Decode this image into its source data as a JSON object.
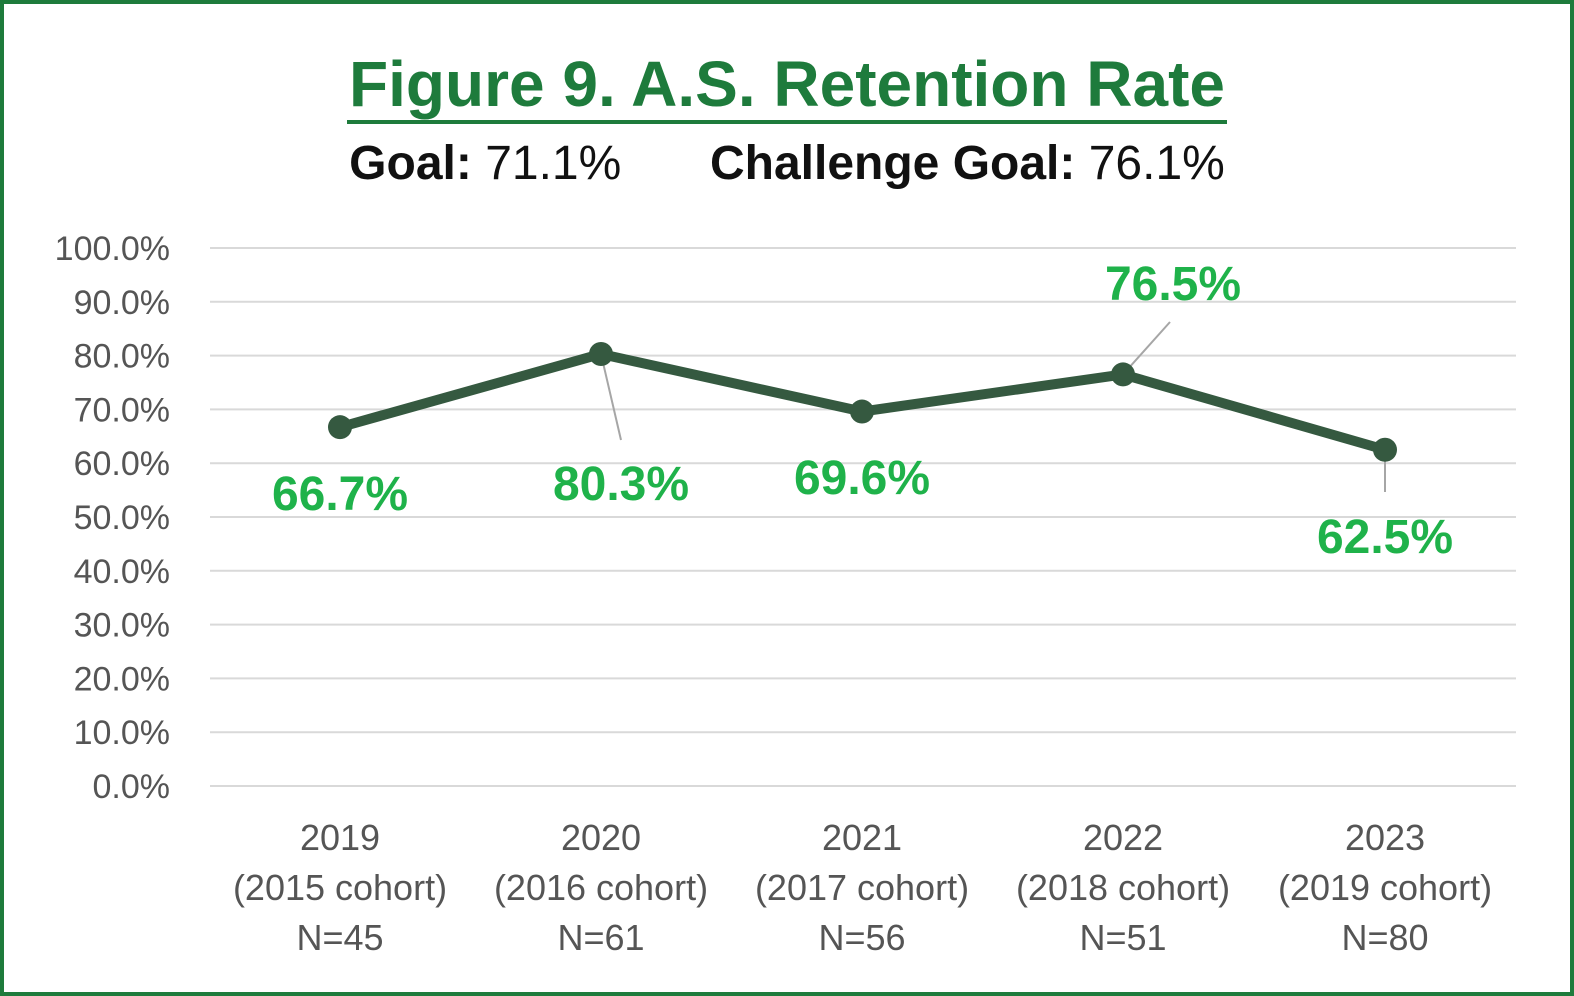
{
  "header": {
    "title": "Figure 9. A.S. Retention Rate",
    "goal_label": "Goal:",
    "goal_value": "71.1%",
    "challenge_label": "Challenge Goal:",
    "challenge_value": "76.1%"
  },
  "colors": {
    "border": "#1e7b3c",
    "title": "#1e7b3c",
    "line": "#355940",
    "data_label": "#1fb24a",
    "grid": "#d9d9d9",
    "axis_text": "#555555"
  },
  "chart_data": {
    "type": "line",
    "title": "Figure 9. A.S. Retention Rate",
    "categories": [
      [
        "2019",
        "(2015 cohort)",
        "N=45"
      ],
      [
        "2020",
        "(2016 cohort)",
        "N=61"
      ],
      [
        "2021",
        "(2017 cohort)",
        "N=56"
      ],
      [
        "2022",
        "(2018 cohort)",
        "N=51"
      ],
      [
        "2023",
        "(2019 cohort)",
        "N=80"
      ]
    ],
    "series": [
      {
        "values": [
          66.7,
          80.3,
          69.6,
          76.5,
          62.5
        ],
        "labels": [
          "66.7%",
          "80.3%",
          "69.6%",
          "76.5%",
          "62.5%"
        ]
      }
    ],
    "ylim": [
      0,
      100
    ],
    "yticks": [
      "0.0%",
      "10.0%",
      "20.0%",
      "30.0%",
      "40.0%",
      "50.0%",
      "60.0%",
      "70.0%",
      "80.0%",
      "90.0%",
      "100.0%"
    ],
    "grid": true,
    "legend": "none"
  }
}
